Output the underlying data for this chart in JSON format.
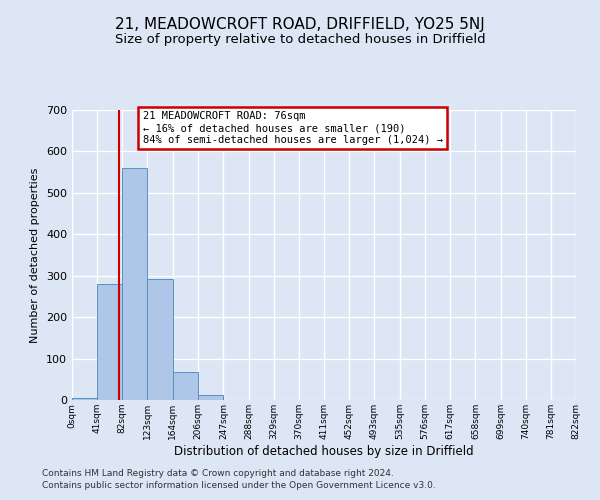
{
  "title": "21, MEADOWCROFT ROAD, DRIFFIELD, YO25 5NJ",
  "subtitle": "Size of property relative to detached houses in Driffield",
  "xlabel": "Distribution of detached houses by size in Driffield",
  "ylabel": "Number of detached properties",
  "bin_edges": [
    0,
    41,
    82,
    123,
    164,
    206,
    247,
    288,
    329,
    370,
    411,
    452,
    493,
    535,
    576,
    617,
    658,
    699,
    740,
    781,
    822
  ],
  "bin_labels": [
    "0sqm",
    "41sqm",
    "82sqm",
    "123sqm",
    "164sqm",
    "206sqm",
    "247sqm",
    "288sqm",
    "329sqm",
    "370sqm",
    "411sqm",
    "452sqm",
    "493sqm",
    "535sqm",
    "576sqm",
    "617sqm",
    "658sqm",
    "699sqm",
    "740sqm",
    "781sqm",
    "822sqm"
  ],
  "bar_heights": [
    5,
    280,
    560,
    293,
    67,
    12,
    0,
    0,
    0,
    0,
    0,
    0,
    0,
    0,
    0,
    0,
    0,
    0,
    0,
    0
  ],
  "bar_color": "#aec6e8",
  "bar_edge_color": "#5a8fc0",
  "property_line_x": 76,
  "property_line_color": "#cc0000",
  "ylim": [
    0,
    700
  ],
  "yticks": [
    0,
    100,
    200,
    300,
    400,
    500,
    600,
    700
  ],
  "annotation_title": "21 MEADOWCROFT ROAD: 76sqm",
  "annotation_line1": "← 16% of detached houses are smaller (190)",
  "annotation_line2": "84% of semi-detached houses are larger (1,024) →",
  "annotation_box_color": "#cc0000",
  "footer_line1": "Contains HM Land Registry data © Crown copyright and database right 2024.",
  "footer_line2": "Contains public sector information licensed under the Open Government Licence v3.0.",
  "background_color": "#dce6f5",
  "grid_color": "#ffffff",
  "title_fontsize": 11,
  "subtitle_fontsize": 9.5,
  "footer_fontsize": 6.5
}
